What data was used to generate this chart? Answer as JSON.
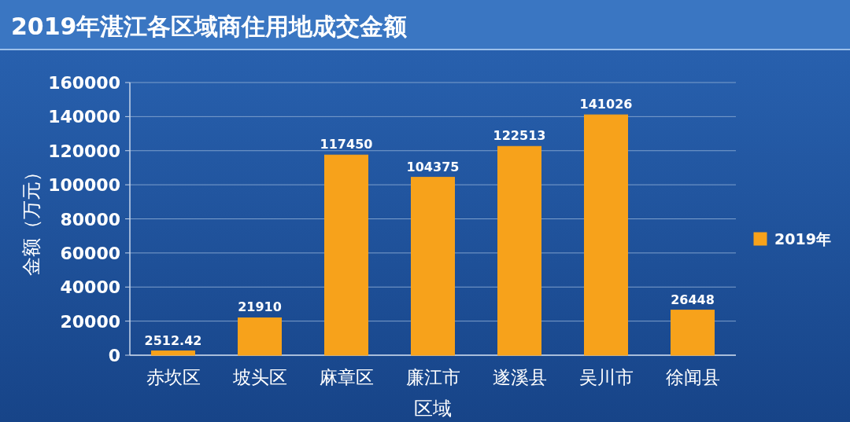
{
  "chart_data": {
    "type": "bar",
    "title": "2019年湛江各区域商住用地成交金额",
    "xlabel": "区域",
    "ylabel": "金额（万元）",
    "categories": [
      "赤坎区",
      "坡头区",
      "麻章区",
      "廉江市",
      "遂溪县",
      "吴川市",
      "徐闻县"
    ],
    "series": [
      {
        "name": "2019年",
        "color": "#f7a21b",
        "values": [
          2512.42,
          21910,
          117450,
          104375,
          122513,
          141026,
          26448
        ]
      }
    ],
    "ylim": [
      0,
      160000
    ],
    "yticks": [
      0,
      20000,
      40000,
      60000,
      80000,
      100000,
      120000,
      140000,
      160000
    ],
    "grid": "y",
    "legend": "right",
    "data_labels": true
  }
}
